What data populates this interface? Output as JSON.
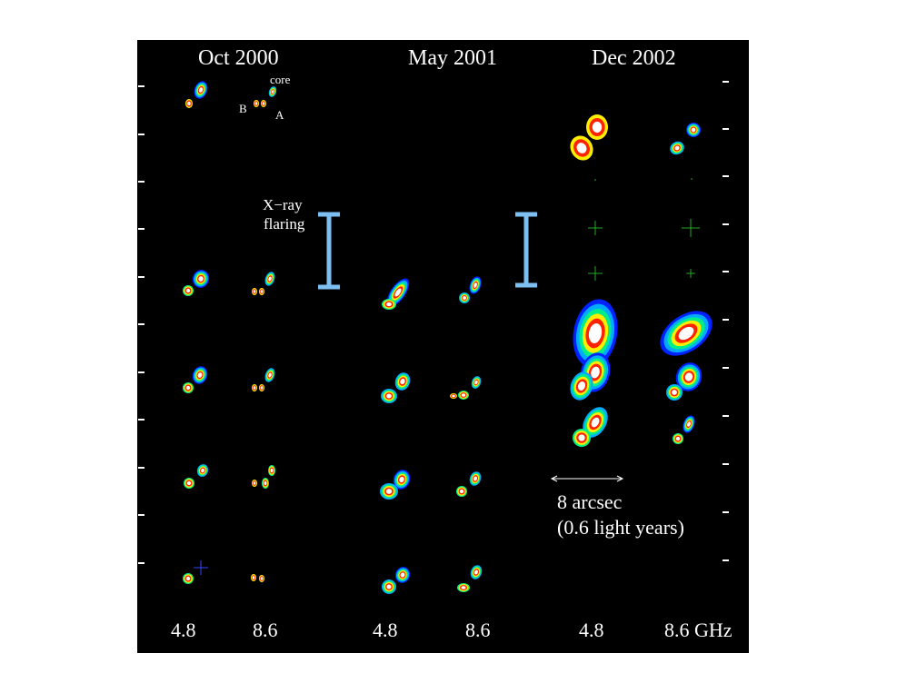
{
  "epochs": [
    "Oct 2000",
    "May 2001",
    "Dec 2002"
  ],
  "frequency_labels": [
    "4.8",
    "8.6",
    "4.8",
    "8.6",
    "4.8",
    "8.6 GHz"
  ],
  "component_labels": {
    "core": "core",
    "a": "A",
    "b": "B"
  },
  "annotation": {
    "line1": "X−ray",
    "line2": "flaring"
  },
  "scale_bar": {
    "line1": "8 arcsec",
    "line2": "(0.6 light years)"
  },
  "colors": {
    "background": "#000000",
    "flare_bar": "#7dbff0",
    "contour_outer": "#0033ff",
    "contour_core": "#ffffff"
  }
}
